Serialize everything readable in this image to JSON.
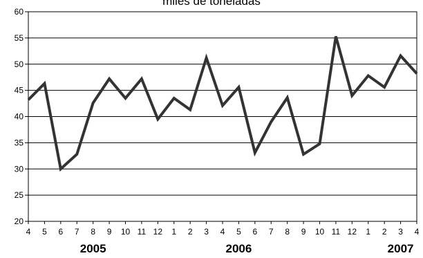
{
  "chart_data": {
    "type": "line",
    "title": "miles de toneladas",
    "xlabel": "",
    "ylabel": "",
    "ylim": [
      20,
      60
    ],
    "y_ticks": [
      20,
      25,
      30,
      35,
      40,
      45,
      50,
      55,
      60
    ],
    "grid": "horizontal",
    "legend": "none",
    "line_color": "#333333",
    "categories": [
      "4",
      "5",
      "6",
      "7",
      "8",
      "9",
      "10",
      "11",
      "12",
      "1",
      "2",
      "3",
      "4",
      "5",
      "6",
      "7",
      "8",
      "9",
      "10",
      "11",
      "12",
      "1",
      "2",
      "3",
      "4"
    ],
    "year_labels": [
      {
        "label": "2005",
        "category_index": 4
      },
      {
        "label": "2006",
        "category_index": 13
      },
      {
        "label": "2007",
        "category_index": 23
      }
    ],
    "series": [
      {
        "values": [
          43.2,
          46.3,
          30.0,
          32.8,
          42.6,
          47.2,
          43.5,
          47.2,
          39.5,
          43.5,
          41.3,
          51.2,
          42.1,
          45.6,
          33.1,
          39.0,
          43.6,
          32.8,
          34.8,
          55.3,
          44.0,
          47.8,
          45.6,
          51.6,
          48.2
        ]
      }
    ]
  }
}
